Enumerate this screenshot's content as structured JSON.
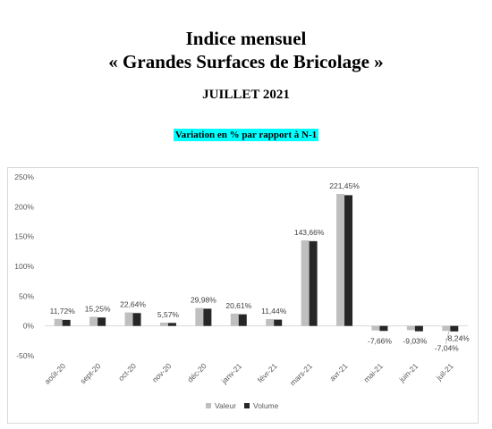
{
  "header": {
    "title_line1": "Indice mensuel",
    "title_line2": "« Grandes Surfaces de Bricolage »",
    "period": "JUILLET 2021",
    "caption": "Variation en % par rapport à N-1"
  },
  "colors": {
    "valeur": "#bfbfbf",
    "volume": "#262626",
    "caption_bg": "#00ffff",
    "frame": "#d9d9d9"
  },
  "chart_data": {
    "type": "bar",
    "categories": [
      "août-20",
      "sept-20",
      "oct-20",
      "nov-20",
      "déc-20",
      "janv-21",
      "févr-21",
      "mars-21",
      "avr-21",
      "mai-21",
      "juin-21",
      "juil-21"
    ],
    "series": [
      {
        "name": "Valeur",
        "values": [
          11.72,
          15.25,
          22.64,
          5.57,
          29.98,
          20.61,
          11.44,
          143.66,
          221.45,
          -7.66,
          -7.04,
          -8.24
        ]
      },
      {
        "name": "Volume",
        "values": [
          10.2,
          14.1,
          21.6,
          5.0,
          28.9,
          19.5,
          10.6,
          142.3,
          219.4,
          -8.4,
          -9.03,
          -9.2
        ]
      }
    ],
    "data_labels": [
      "11,72%",
      "15,25%",
      "22,64%",
      "5,57%",
      "29,98%",
      "20,61%",
      "11,44%",
      "143,66%",
      "221,45%",
      "-7,66%",
      "-9,03%",
      "-8,24%"
    ],
    "extra_label": "-7,04%",
    "y_ticks": [
      "250%",
      "200%",
      "150%",
      "100%",
      "50%",
      "0%",
      "-50%"
    ],
    "y_tick_values": [
      250,
      200,
      150,
      100,
      50,
      0,
      -50
    ],
    "ylim": [
      -50,
      250
    ],
    "legend_position": "bottom",
    "grid": false
  }
}
